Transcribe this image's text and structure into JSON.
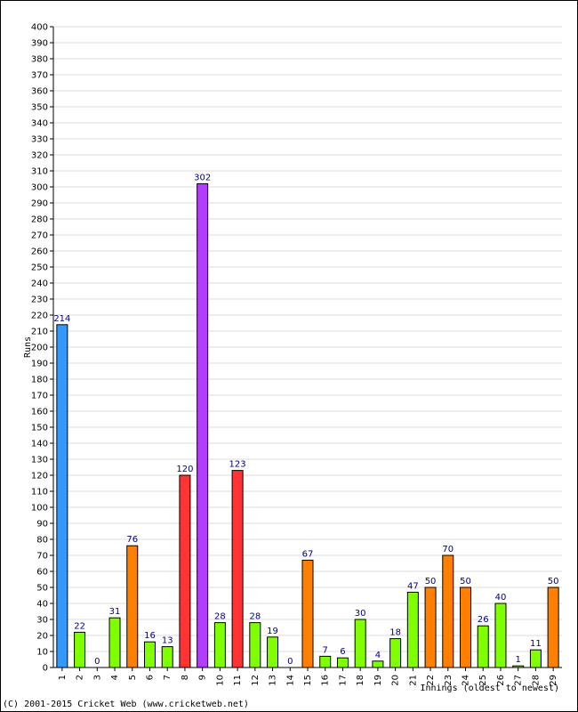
{
  "chart_data": {
    "type": "bar",
    "xlabel": "Innings (oldest to newest)",
    "ylabel": "Runs",
    "ylim": [
      0,
      400
    ],
    "ytick_step": 10,
    "grid": true,
    "categories": [
      "1",
      "2",
      "3",
      "4",
      "5",
      "6",
      "7",
      "8",
      "9",
      "10",
      "11",
      "12",
      "13",
      "14",
      "15",
      "16",
      "17",
      "18",
      "19",
      "20",
      "21",
      "22",
      "23",
      "24",
      "25",
      "26",
      "27",
      "28",
      "29"
    ],
    "values": [
      214,
      22,
      0,
      31,
      76,
      16,
      13,
      120,
      302,
      28,
      123,
      28,
      19,
      0,
      67,
      7,
      6,
      30,
      4,
      18,
      47,
      50,
      70,
      50,
      26,
      40,
      1,
      11,
      50
    ],
    "bar_colors": [
      "#3399ff",
      "#80ff00",
      "#80ff00",
      "#80ff00",
      "#ff8000",
      "#80ff00",
      "#80ff00",
      "#ff3333",
      "#b23dff",
      "#80ff00",
      "#ff3333",
      "#80ff00",
      "#80ff00",
      "#80ff00",
      "#ff8000",
      "#80ff00",
      "#80ff00",
      "#80ff00",
      "#80ff00",
      "#80ff00",
      "#80ff00",
      "#ff8000",
      "#ff8000",
      "#ff8000",
      "#80ff00",
      "#80ff00",
      "#80ff00",
      "#80ff00",
      "#ff8000"
    ]
  },
  "footer": "(C) 2001-2015 Cricket Web (www.cricketweb.net)"
}
